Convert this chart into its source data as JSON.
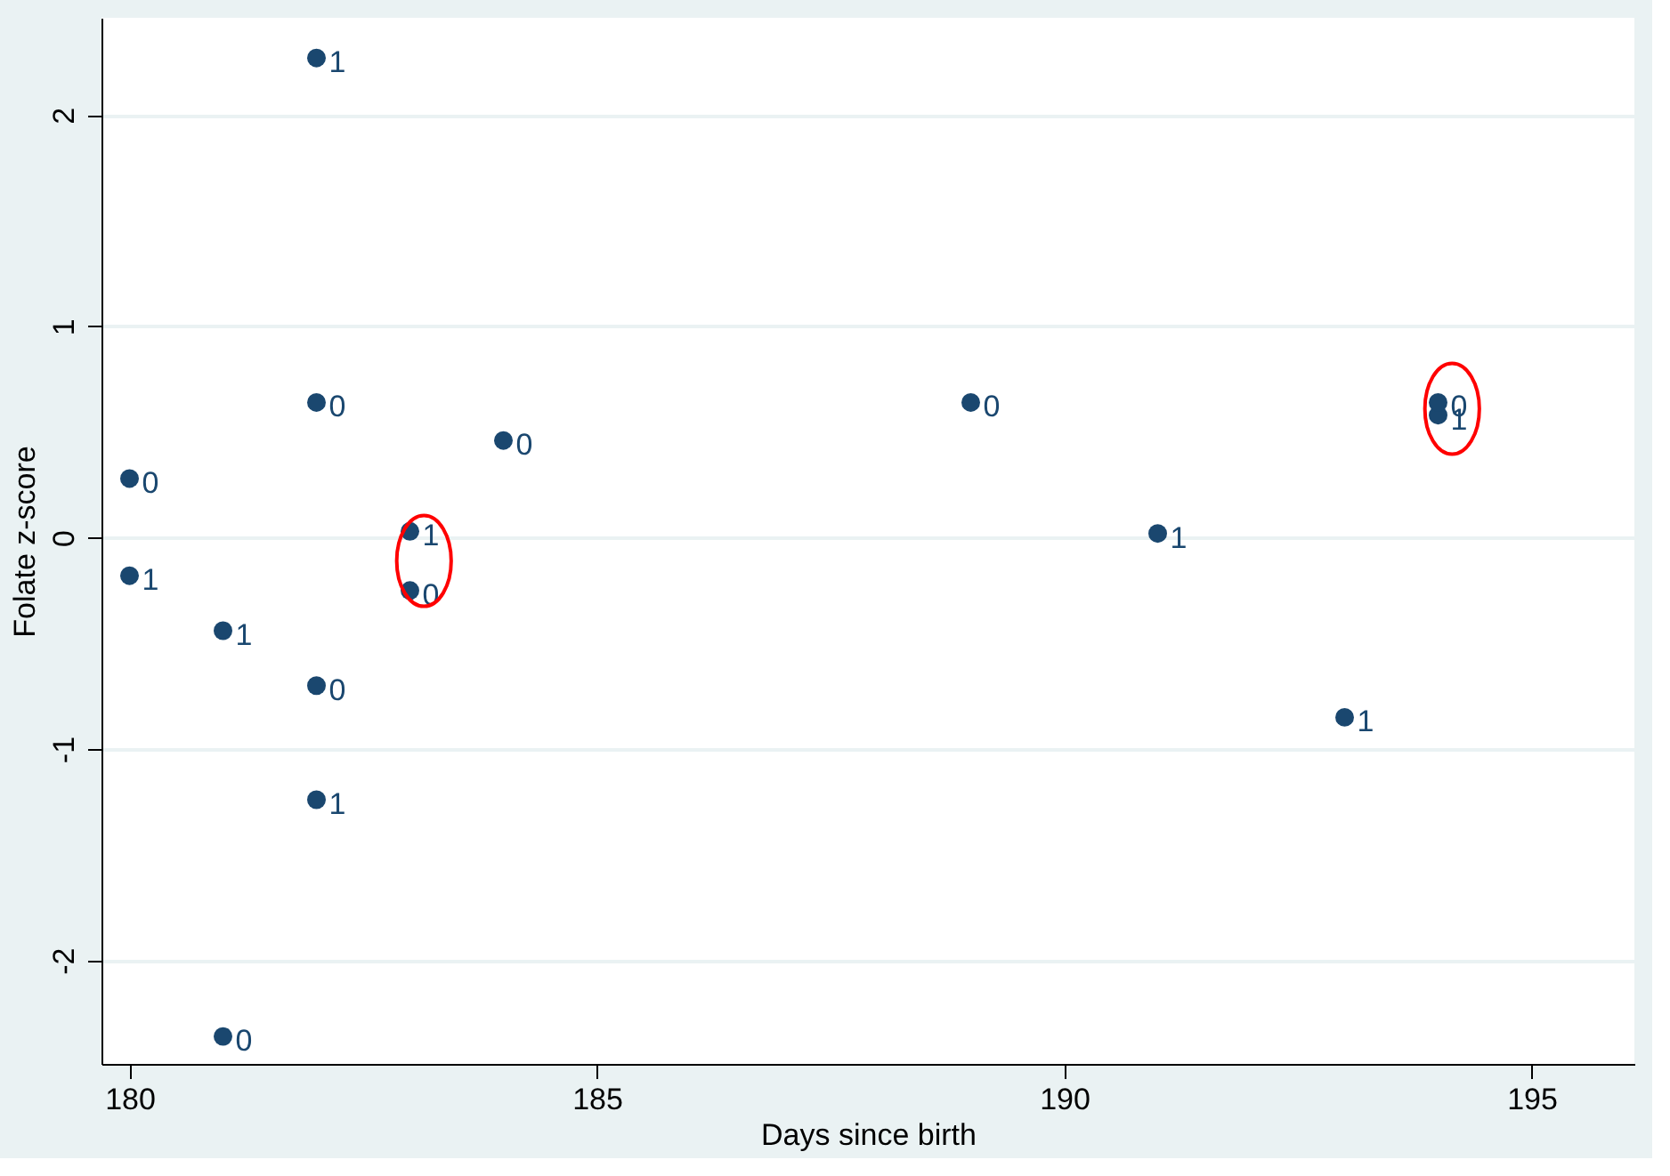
{
  "chart_data": {
    "type": "scatter",
    "xlabel": "Days since birth",
    "ylabel": "Folate z-score",
    "series": [
      {
        "name": "1",
        "color": "#1a476f",
        "x": [
          182,
          183,
          180,
          181,
          182,
          191,
          193,
          194
        ],
        "values": [
          2.27,
          0.03,
          -0.18,
          -0.44,
          -1.24,
          0.02,
          -0.85,
          0.58
        ]
      },
      {
        "name": "0",
        "color": "#1a476f",
        "x": [
          182,
          184,
          180,
          183,
          182,
          181,
          189,
          194
        ],
        "values": [
          0.64,
          0.46,
          0.28,
          -0.25,
          -0.7,
          -2.36,
          0.64,
          0.64
        ]
      }
    ],
    "marker": "circle",
    "xlim": [
      179.7,
      196.1
    ],
    "xticks": [
      180,
      185,
      190,
      195
    ],
    "ylim": [
      -2.49,
      2.46
    ],
    "yticks": [
      -2,
      -1,
      0,
      1,
      2
    ],
    "grid": "y"
  }
}
